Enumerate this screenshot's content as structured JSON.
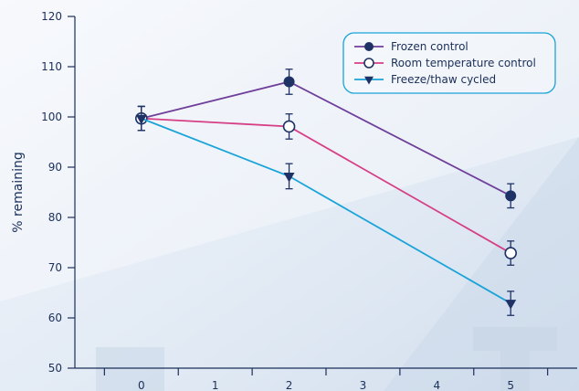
{
  "chart_data": {
    "type": "line",
    "title": "",
    "xlabel": "",
    "ylabel": "% remaining",
    "x": [
      0,
      2,
      5
    ],
    "xlim": [
      -0.9,
      5.9
    ],
    "ylim": [
      50,
      120
    ],
    "xticks": [
      0,
      1,
      2,
      3,
      4,
      5
    ],
    "yticks": [
      50,
      60,
      70,
      80,
      90,
      100,
      110,
      120
    ],
    "grid": false,
    "legend_position": "top-right",
    "series": [
      {
        "name": "Frozen control",
        "values": [
          99.7,
          107,
          84.3
        ],
        "errors": [
          2.4,
          2.5,
          2.4
        ],
        "marker": "filled-circle",
        "color": "#6f3f9a",
        "marker_color": "#1f3266"
      },
      {
        "name": "Room temperature control",
        "values": [
          99.7,
          98.1,
          72.9
        ],
        "errors": [
          2.4,
          2.5,
          2.4
        ],
        "marker": "open-circle",
        "color": "#d63f86",
        "marker_color": "#1f3266"
      },
      {
        "name": "Freeze/thaw cycled",
        "values": [
          99.7,
          88.2,
          62.9
        ],
        "errors": [
          2.4,
          2.5,
          2.4
        ],
        "marker": "filled-triangle-down",
        "color": "#1aa3d8",
        "marker_color": "#1f3266"
      }
    ]
  },
  "colors": {
    "axis": "#1a2f5a",
    "legend_border": "#1aa3d8",
    "background_light": "#eef3fa",
    "background_dark": "#d5e1ef"
  }
}
